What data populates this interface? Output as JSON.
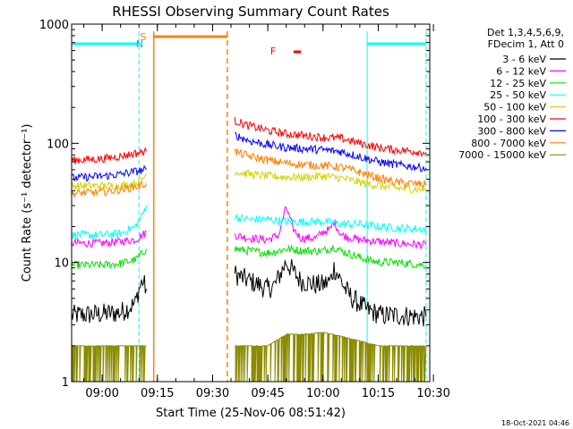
{
  "chart_data": {
    "type": "line",
    "title": "RHESSI Observing Summary Count Rates",
    "xlabel": "Start Time (25-Nov-06 08:51:42)",
    "ylabel": "Count Rate (s⁻¹ detector⁻¹)",
    "yscale": "log",
    "ylim": [
      1,
      1000
    ],
    "xlim": [
      "08:51:42",
      "10:29"
    ],
    "x_ticks": [
      "09:00",
      "09:15",
      "09:30",
      "09:45",
      "10:00",
      "10:15",
      "10:30"
    ],
    "y_ticks": [
      "1",
      "10",
      "100",
      "1000"
    ],
    "timestamp": "18-Oct-2021 04:46",
    "legend_position": "right",
    "legend_header": [
      "Det 1,3,4,5,6,9,",
      "FDecim 1, Att 0"
    ],
    "legend": [
      {
        "label": "3 - 6 keV",
        "color": "#000000"
      },
      {
        "label": "6 - 12 keV",
        "color": "#ff00ff"
      },
      {
        "label": "12 - 25 keV",
        "color": "#00e000"
      },
      {
        "label": "25 - 50 keV",
        "color": "#00ffff"
      },
      {
        "label": "50 - 100 keV",
        "color": "#d4d400"
      },
      {
        "label": "100 - 300 keV",
        "color": "#ff0000"
      },
      {
        "label": "300 - 800 keV",
        "color": "#0000ff"
      },
      {
        "label": "800 - 7000 keV",
        "color": "#ff8000"
      },
      {
        "label": "7000 - 15000 keV",
        "color": "#8b8b00"
      }
    ],
    "annotations": [
      {
        "label": "S",
        "color": "#ff8000",
        "time": "09:13"
      },
      {
        "label": "N",
        "color": "#00aaff",
        "time": "09:12"
      },
      {
        "label": "F",
        "color": "#ff0000",
        "time": "09:53"
      }
    ],
    "intervals": [
      {
        "kind": "night",
        "color": "#00ffff",
        "start": "08:51:42",
        "end": "09:10"
      },
      {
        "kind": "night",
        "color": "#00ffff",
        "start": "10:12",
        "end": "10:28"
      },
      {
        "kind": "saa",
        "color": "#ff8000",
        "start": "09:14",
        "end": "09:34"
      },
      {
        "kind": "flare",
        "color": "#ff0000",
        "start": "09:52",
        "end": "09:54"
      }
    ],
    "series": [
      {
        "name": "3 - 6 keV",
        "color": "#000000",
        "segments": [
          {
            "x": [
              "08:51:42",
              "09:00",
              "09:05",
              "09:09",
              "09:10",
              "09:11",
              "09:12"
            ],
            "y": [
              3.6,
              3.7,
              3.8,
              4.5,
              6,
              7,
              6
            ]
          },
          {
            "x": [
              "09:36",
              "09:40",
              "09:45",
              "09:47",
              "09:50",
              "09:54",
              "09:58",
              "10:00",
              "10:02",
              "10:03",
              "10:05",
              "10:06",
              "10:08",
              "10:10",
              "10:12",
              "10:16",
              "10:20",
              "10:28"
            ],
            "y": [
              8,
              7,
              6,
              6.5,
              10,
              7,
              6.5,
              6.5,
              7,
              9,
              7,
              6,
              5,
              4.5,
              4,
              3.6,
              3.6,
              3.5
            ]
          }
        ]
      },
      {
        "name": "6 - 12 keV",
        "color": "#ff00ff",
        "segments": [
          {
            "x": [
              "08:51:42",
              "09:00",
              "09:05",
              "09:09",
              "09:11",
              "09:12"
            ],
            "y": [
              14.5,
              14.5,
              15,
              15.5,
              17,
              18
            ]
          },
          {
            "x": [
              "09:36",
              "09:40",
              "09:45",
              "09:48",
              "09:50",
              "09:52",
              "09:54",
              "09:58",
              "10:00",
              "10:02",
              "10:03",
              "10:05",
              "10:08",
              "10:10",
              "10:15",
              "10:20",
              "10:28"
            ],
            "y": [
              17,
              16,
              15.5,
              17,
              29,
              19,
              16,
              16,
              18,
              19,
              22,
              17,
              16,
              15.5,
              15,
              14.5,
              14
            ]
          }
        ]
      },
      {
        "name": "12 - 25 keV",
        "color": "#00e000",
        "segments": [
          {
            "x": [
              "08:51:42",
              "09:00",
              "09:05",
              "09:09",
              "09:11",
              "09:12"
            ],
            "y": [
              9.5,
              9.5,
              9.8,
              10.5,
              12,
              13
            ]
          },
          {
            "x": [
              "09:36",
              "09:40",
              "09:45",
              "09:50",
              "09:55",
              "10:00",
              "10:03",
              "10:05",
              "10:10",
              "10:15",
              "10:20",
              "10:28"
            ],
            "y": [
              13,
              12.5,
              12,
              13,
              12.5,
              12.5,
              13.5,
              12.5,
              11,
              10,
              10,
              9.5
            ]
          }
        ]
      },
      {
        "name": "25 - 50 keV",
        "color": "#00ffff",
        "segments": [
          {
            "x": [
              "08:51:42",
              "09:00",
              "09:05",
              "09:09",
              "09:11",
              "09:12"
            ],
            "y": [
              17,
              17,
              17.5,
              20,
              25,
              30
            ]
          },
          {
            "x": [
              "09:36",
              "09:40",
              "09:45",
              "09:50",
              "09:55",
              "10:00",
              "10:05",
              "10:10",
              "10:15",
              "10:20",
              "10:28"
            ],
            "y": [
              24,
              23,
              23,
              22,
              22,
              22,
              21,
              21,
              20,
              19.5,
              19
            ]
          }
        ]
      },
      {
        "name": "50 - 100 keV",
        "color": "#d4d400",
        "segments": [
          {
            "x": [
              "08:51:42",
              "09:00",
              "09:05",
              "09:09",
              "09:11",
              "09:12"
            ],
            "y": [
              44,
              44,
              44,
              46,
              50,
              55
            ]
          },
          {
            "x": [
              "09:36",
              "09:40",
              "09:45",
              "09:50",
              "09:55",
              "10:00",
              "10:05",
              "10:10",
              "10:15",
              "10:20",
              "10:28"
            ],
            "y": [
              58,
              55,
              53,
              52,
              52,
              53,
              51,
              47,
              44,
              42,
              41
            ]
          }
        ]
      },
      {
        "name": "100 - 300 keV",
        "color": "#ff0000",
        "segments": [
          {
            "x": [
              "08:51:42",
              "09:00",
              "09:05",
              "09:09",
              "09:12"
            ],
            "y": [
              72,
              74,
              78,
              82,
              86
            ]
          },
          {
            "x": [
              "09:36",
              "09:40",
              "09:45",
              "09:50",
              "09:55",
              "10:00",
              "10:05",
              "10:10",
              "10:15",
              "10:20",
              "10:28"
            ],
            "y": [
              155,
              140,
              128,
              120,
              116,
              112,
              110,
              100,
              92,
              88,
              84
            ]
          }
        ]
      },
      {
        "name": "300 - 800 keV",
        "color": "#0000ff",
        "segments": [
          {
            "x": [
              "08:51:42",
              "09:00",
              "09:05",
              "09:09",
              "09:12"
            ],
            "y": [
              51,
              53,
              55,
              58,
              60
            ]
          },
          {
            "x": [
              "09:36",
              "09:40",
              "09:45",
              "09:50",
              "09:55",
              "10:00",
              "10:05",
              "10:10",
              "10:15",
              "10:20",
              "10:28"
            ],
            "y": [
              118,
              105,
              97,
              92,
              90,
              88,
              85,
              77,
              70,
              66,
              62
            ]
          }
        ]
      },
      {
        "name": "800 - 7000 keV",
        "color": "#ff8000",
        "segments": [
          {
            "x": [
              "08:51:42",
              "09:00",
              "09:05",
              "09:09",
              "09:12"
            ],
            "y": [
              38,
              39,
              41,
              43,
              46
            ]
          },
          {
            "x": [
              "09:36",
              "09:40",
              "09:45",
              "09:50",
              "09:55",
              "10:00",
              "10:05",
              "10:10",
              "10:15",
              "10:20",
              "10:28"
            ],
            "y": [
              85,
              78,
              72,
              68,
              66,
              65,
              63,
              57,
              51,
              47,
              45
            ]
          }
        ]
      },
      {
        "name": "7000 - 15000 keV",
        "color": "#8b8b00",
        "segments": [
          {
            "x": [
              "08:51:42",
              "09:00",
              "09:05",
              "09:09",
              "09:12"
            ],
            "y": [
              2,
              2,
              2,
              2,
              2
            ]
          },
          {
            "x": [
              "09:36",
              "09:45",
              "09:50",
              "09:55",
              "10:00",
              "10:05",
              "10:10",
              "10:15",
              "10:28"
            ],
            "y": [
              2,
              2,
              2.5,
              2.5,
              2.6,
              2.4,
              2.2,
              2,
              2
            ]
          }
        ]
      }
    ]
  }
}
